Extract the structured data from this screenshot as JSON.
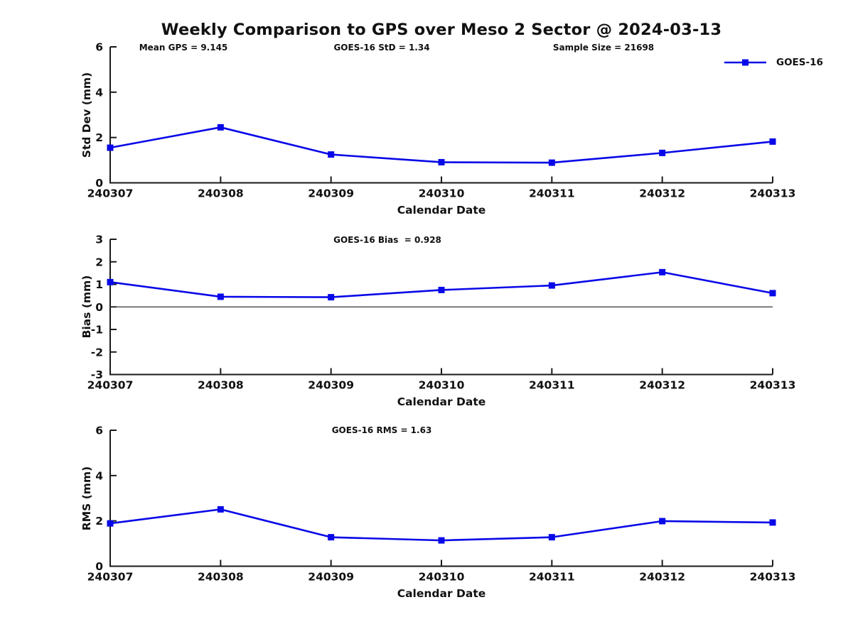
{
  "title": "Weekly Comparison to GPS over Meso 2 Sector @ 2024-03-13",
  "legend": {
    "label": "GOES-16"
  },
  "colors": {
    "series": "#0808e8",
    "axis": "#1a1a1a",
    "zero_line": "#333333",
    "text": "#111111"
  },
  "chart_data": [
    {
      "type": "line",
      "panel": "std-dev",
      "annotations": [
        "Mean GPS = 9.145",
        "GOES-16 StD = 1.34",
        "Sample Size = 21698"
      ],
      "categories": [
        "240307",
        "240308",
        "240309",
        "240310",
        "240311",
        "240312",
        "240313"
      ],
      "series": [
        {
          "name": "GOES-16",
          "values": [
            1.55,
            2.45,
            1.25,
            0.91,
            0.89,
            1.32,
            1.82
          ]
        }
      ],
      "xlabel": "Calendar Date",
      "ylabel": "Std Dev (mm)",
      "ylim": [
        0,
        6
      ],
      "yticks": [
        0,
        2,
        4,
        6
      ],
      "zero_line": false,
      "grid": false,
      "legend_position": "top-right",
      "marker": "square"
    },
    {
      "type": "line",
      "panel": "bias",
      "annotations": [
        "GOES-16 Bias  = 0.928"
      ],
      "categories": [
        "240307",
        "240308",
        "240309",
        "240310",
        "240311",
        "240312",
        "240313"
      ],
      "series": [
        {
          "name": "GOES-16",
          "values": [
            1.1,
            0.45,
            0.43,
            0.75,
            0.95,
            1.54,
            0.61
          ]
        }
      ],
      "xlabel": "Calendar Date",
      "ylabel": "Bias (mm)",
      "ylim": [
        -3,
        3
      ],
      "yticks": [
        -3,
        -2,
        -1,
        0,
        1,
        2,
        3
      ],
      "zero_line": true,
      "grid": false,
      "legend_position": "none",
      "marker": "square"
    },
    {
      "type": "line",
      "panel": "rms",
      "annotations": [
        "GOES-16 RMS = 1.63"
      ],
      "categories": [
        "240307",
        "240308",
        "240309",
        "240310",
        "240311",
        "240312",
        "240313"
      ],
      "series": [
        {
          "name": "GOES-16",
          "values": [
            1.89,
            2.51,
            1.28,
            1.14,
            1.28,
            1.99,
            1.93
          ]
        }
      ],
      "xlabel": "Calendar Date",
      "ylabel": "RMS (mm)",
      "ylim": [
        0,
        6
      ],
      "yticks": [
        0,
        2,
        4,
        6
      ],
      "zero_line": false,
      "grid": false,
      "legend_position": "none",
      "marker": "square"
    }
  ]
}
